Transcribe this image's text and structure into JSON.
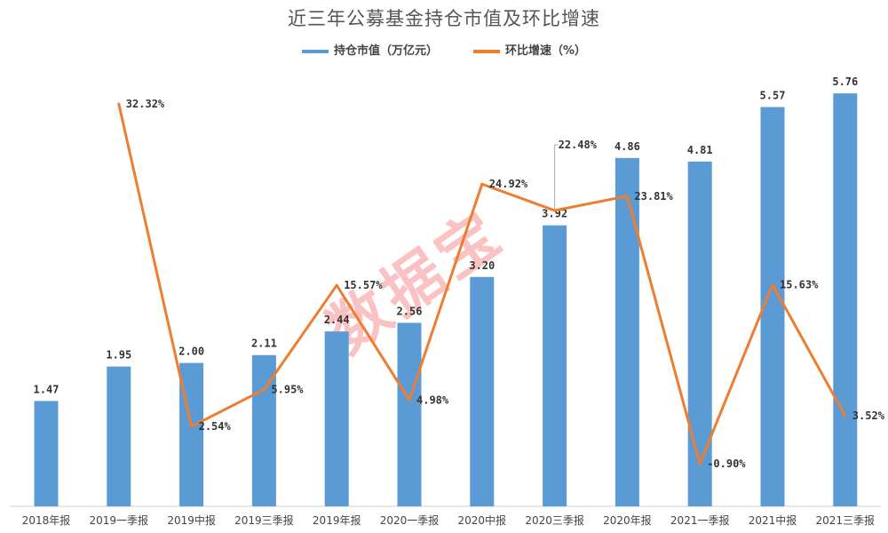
{
  "chart_data": {
    "type": "bar",
    "title": "近三年公募基金持仓市值及环比增速",
    "categories": [
      "2018年报",
      "2019一季报",
      "2019中报",
      "2019三季报",
      "2019年报",
      "2020一季报",
      "2020中报",
      "2020三季报",
      "2020年报",
      "2021一季报",
      "2021中报",
      "2021三季报"
    ],
    "series": [
      {
        "name": "持仓市值（万亿元）",
        "type": "bar",
        "color": "#5B9BD5",
        "values": [
          1.47,
          1.95,
          2.0,
          2.11,
          2.44,
          2.56,
          3.2,
          3.92,
          4.86,
          4.81,
          5.57,
          5.76
        ],
        "labels": [
          "1.47",
          "1.95",
          "2.00",
          "2.11",
          "2.44",
          "2.56",
          "3.20",
          "3.92",
          "4.86",
          "4.81",
          "5.57",
          "5.76"
        ]
      },
      {
        "name": "环比增速（%）",
        "type": "line",
        "color": "#ED7D31",
        "values": [
          null,
          32.32,
          2.54,
          5.95,
          15.57,
          4.98,
          24.92,
          22.48,
          23.81,
          -0.9,
          15.63,
          3.52
        ],
        "labels": [
          "",
          "32.32%",
          "2.54%",
          "5.95%",
          "15.57%",
          "4.98%",
          "24.92%",
          "22.48%",
          "23.81%",
          "-0.90%",
          "15.63%",
          "3.52%"
        ]
      }
    ],
    "legend_position": "top",
    "grid": false
  },
  "watermark": "数据宝"
}
